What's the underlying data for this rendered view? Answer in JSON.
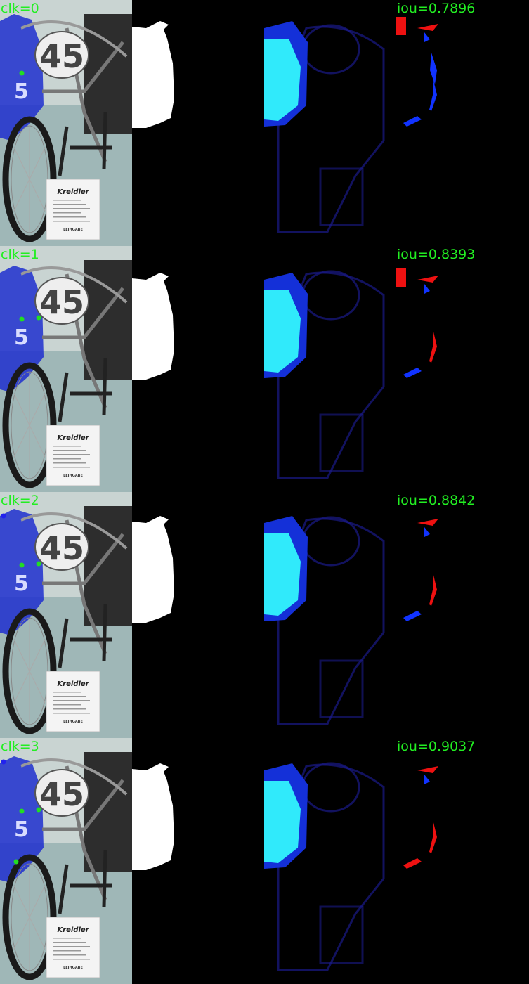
{
  "rows": [
    {
      "clk": "clk=0",
      "iou": "iou=0.7896"
    },
    {
      "clk": "clk=1",
      "iou": "iou=0.8393"
    },
    {
      "clk": "clk=2",
      "iou": "iou=0.8842"
    },
    {
      "clk": "clk=3",
      "iou": "iou=0.9037"
    }
  ],
  "sign": {
    "brand": "Kreidler",
    "footer": "LEIHGABE"
  },
  "race_number": "45",
  "side_number": "5",
  "colors": {
    "label_green": "#22ee22",
    "mask_white": "#ffffff",
    "positive_click": "#22dd22",
    "negative_click": "#2222ee",
    "false_positive": "#ee1111",
    "false_negative": "#1133ff",
    "heatmap_hot": "#33ffff",
    "heatmap_edge": "#1a1a88"
  }
}
